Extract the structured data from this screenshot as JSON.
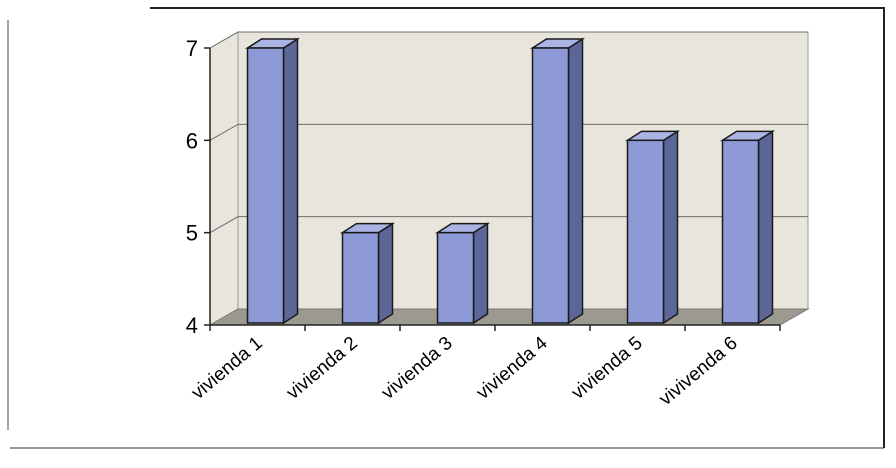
{
  "chart_data": {
    "type": "bar",
    "style": "3d-column",
    "categories": [
      "vivienda 1",
      "vivienda 2",
      "vivienda 3",
      "vivienda 4",
      "vivienda 5",
      "vivivenda 6"
    ],
    "values": [
      7,
      5,
      5,
      7,
      6,
      6
    ],
    "yticks": [
      "4",
      "5",
      "6",
      "7"
    ],
    "ylim": [
      4,
      7
    ],
    "grid": true,
    "legend": "none",
    "colors": {
      "bar_front": "#8e9ad6",
      "bar_top": "#a9b3e4",
      "bar_side": "#5c6699",
      "bar_outline": "#1a1a1a",
      "wall": "#e8e6dc",
      "floor": "#9c9a90",
      "gridline": "#6d6d6d"
    }
  }
}
